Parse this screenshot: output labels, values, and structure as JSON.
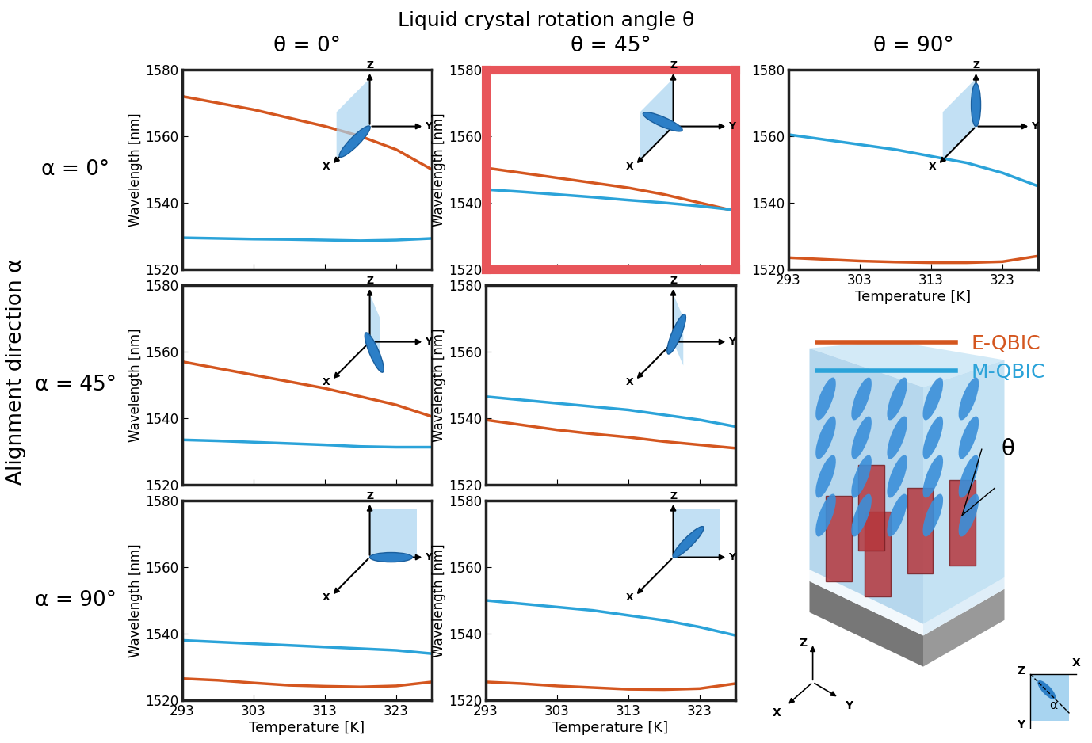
{
  "figure": {
    "title": "Liquid crystal rotation angle θ",
    "column_labels": [
      "θ = 0°",
      "θ = 45°",
      "θ = 90°"
    ],
    "row_labels": [
      "α = 0°",
      "α = 45°",
      "α = 90°"
    ],
    "row_axis_label": "Alignment direction α",
    "inset_axis_labels": [
      "X",
      "Y",
      "Z"
    ],
    "schematic_labels": {
      "theta": "θ",
      "alpha": "α",
      "axes": [
        "X",
        "Y",
        "Z"
      ]
    }
  },
  "chart_data": [
    {
      "type": "line",
      "x": [
        293,
        298,
        303,
        308,
        313,
        318,
        323,
        328
      ],
      "xlim": [
        293,
        328
      ],
      "xticks": [
        293,
        303,
        313,
        323
      ],
      "ylim": [
        1520,
        1580
      ],
      "yticks": [
        1520,
        1540,
        1560,
        1580
      ],
      "ylabel": "Wavelength [nm]",
      "tick_labels": "y",
      "series": [
        {
          "name": "E-QBIC",
          "color": "#d4561f",
          "values": [
            1572,
            1570,
            1568,
            1565.5,
            1563,
            1560,
            1556,
            1550
          ]
        },
        {
          "name": "M-QBIC",
          "color": "#2ba3d9",
          "values": [
            1529.5,
            1529.3,
            1529.1,
            1529,
            1528.8,
            1528.6,
            1528.8,
            1529.3
          ]
        }
      ]
    },
    {
      "type": "line",
      "x": [
        293,
        298,
        303,
        308,
        313,
        318,
        323,
        328
      ],
      "xlim": [
        293,
        328
      ],
      "xticks": [
        293,
        303,
        313,
        323
      ],
      "ylim": [
        1520,
        1580
      ],
      "yticks": [
        1520,
        1540,
        1560,
        1580
      ],
      "ylabel": "Wavelength [nm]",
      "tick_labels": "y",
      "series": [
        {
          "name": "E-QBIC",
          "color": "#d4561f",
          "values": [
            1550.5,
            1549,
            1547.5,
            1546,
            1544.5,
            1542.5,
            1540,
            1537.5
          ]
        },
        {
          "name": "M-QBIC",
          "color": "#2ba3d9",
          "values": [
            1544,
            1543.3,
            1542.5,
            1541.7,
            1540.8,
            1540,
            1539,
            1537.8
          ]
        }
      ]
    },
    {
      "type": "line",
      "x": [
        293,
        298,
        303,
        308,
        313,
        318,
        323,
        328
      ],
      "xlim": [
        293,
        328
      ],
      "xticks": [
        293,
        303,
        313,
        323
      ],
      "ylim": [
        1520,
        1580
      ],
      "yticks": [
        1520,
        1540,
        1560,
        1580
      ],
      "xlabel": "Temperature [K]",
      "series": [
        {
          "name": "E-QBIC",
          "color": "#d4561f",
          "values": [
            1523.5,
            1523,
            1522.5,
            1522.2,
            1522,
            1522,
            1522.3,
            1524
          ]
        },
        {
          "name": "M-QBIC",
          "color": "#2ba3d9",
          "values": [
            1560.5,
            1559,
            1557.5,
            1556,
            1554,
            1552,
            1549,
            1545
          ]
        }
      ]
    },
    {
      "type": "line",
      "x": [
        293,
        298,
        303,
        308,
        313,
        318,
        323,
        328
      ],
      "xlim": [
        293,
        328
      ],
      "xticks": [
        293,
        303,
        313,
        323
      ],
      "ylim": [
        1520,
        1580
      ],
      "yticks": [
        1520,
        1540,
        1560,
        1580
      ],
      "ylabel": "Wavelength [nm]",
      "tick_labels": "y",
      "series": [
        {
          "name": "E-QBIC",
          "color": "#d4561f",
          "values": [
            1557,
            1555,
            1553,
            1551,
            1549,
            1546.5,
            1544,
            1540.5
          ]
        },
        {
          "name": "M-QBIC",
          "color": "#2ba3d9",
          "values": [
            1533.5,
            1533.2,
            1532.8,
            1532.4,
            1532,
            1531.5,
            1531.3,
            1531.3
          ]
        }
      ]
    },
    {
      "type": "line",
      "x": [
        293,
        298,
        303,
        308,
        313,
        318,
        323,
        328
      ],
      "xlim": [
        293,
        328
      ],
      "xticks": [
        293,
        303,
        313,
        323
      ],
      "ylim": [
        1520,
        1580
      ],
      "yticks": [
        1520,
        1540,
        1560,
        1580
      ],
      "ylabel": "Wavelength [nm]",
      "tick_labels": "y",
      "series": [
        {
          "name": "E-QBIC",
          "color": "#d4561f",
          "values": [
            1539.5,
            1538,
            1536.5,
            1535.3,
            1534.3,
            1533,
            1532,
            1531
          ]
        },
        {
          "name": "M-QBIC",
          "color": "#2ba3d9",
          "values": [
            1546.5,
            1545.5,
            1544.5,
            1543.5,
            1542.5,
            1541,
            1539.5,
            1537.5
          ]
        }
      ]
    },
    {
      "type": "line",
      "x": [
        293,
        298,
        303,
        308,
        313,
        318,
        323,
        328
      ],
      "xlim": [
        293,
        328
      ],
      "xticks": [
        293,
        303,
        313,
        323
      ],
      "ylim": [
        1520,
        1580
      ],
      "yticks": [
        1520,
        1540,
        1560,
        1580
      ],
      "ylabel": "Wavelength [nm]",
      "xlabel": "Temperature [K]",
      "series": [
        {
          "name": "E-QBIC",
          "color": "#d4561f",
          "values": [
            1526.5,
            1526,
            1525.2,
            1524.5,
            1524.2,
            1524,
            1524.3,
            1525.5
          ]
        },
        {
          "name": "M-QBIC",
          "color": "#2ba3d9",
          "values": [
            1538,
            1537.5,
            1537,
            1536.5,
            1536,
            1535.5,
            1535,
            1534
          ]
        }
      ]
    },
    {
      "type": "line",
      "x": [
        293,
        298,
        303,
        308,
        313,
        318,
        323,
        328
      ],
      "xlim": [
        293,
        328
      ],
      "xticks": [
        293,
        303,
        313,
        323
      ],
      "ylim": [
        1520,
        1580
      ],
      "yticks": [
        1520,
        1540,
        1560,
        1580
      ],
      "ylabel": "Wavelength [nm]",
      "xlabel": "Temperature [K]",
      "series": [
        {
          "name": "E-QBIC",
          "color": "#d4561f",
          "values": [
            1525.5,
            1525,
            1524.3,
            1523.8,
            1523.3,
            1523.2,
            1523.5,
            1525
          ]
        },
        {
          "name": "M-QBIC",
          "color": "#2ba3d9",
          "values": [
            1550,
            1549,
            1548,
            1547,
            1545.5,
            1544,
            1542,
            1539.5
          ]
        }
      ]
    }
  ]
}
